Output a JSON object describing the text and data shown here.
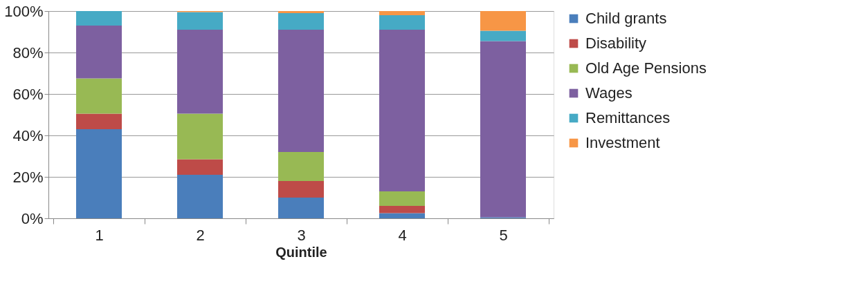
{
  "chart_data": {
    "type": "bar",
    "stacked": true,
    "xlabel": "Quintile",
    "categories": [
      "1",
      "2",
      "3",
      "4",
      "5"
    ],
    "series": [
      {
        "name": "Child grants",
        "color": "#4a7ebb",
        "values": [
          43,
          21,
          10,
          2.5,
          0.5
        ]
      },
      {
        "name": "Disability",
        "color": "#be4b48",
        "values": [
          7.5,
          7.5,
          8,
          3.5,
          0
        ]
      },
      {
        "name": "Old Age Pensions",
        "color": "#98b954",
        "values": [
          17,
          22,
          14,
          7,
          0
        ]
      },
      {
        "name": "Wages",
        "color": "#7d60a0",
        "values": [
          25.5,
          40.5,
          59,
          78,
          85
        ]
      },
      {
        "name": "Remittances",
        "color": "#46aac5",
        "values": [
          7,
          8.5,
          8,
          7,
          5
        ]
      },
      {
        "name": "Investment",
        "color": "#f79646",
        "values": [
          0,
          0.5,
          1,
          2,
          9.5
        ]
      }
    ],
    "ylim": [
      0,
      100
    ],
    "yticks": [
      {
        "value": 0,
        "label": "0%"
      },
      {
        "value": 20,
        "label": "20%"
      },
      {
        "value": 40,
        "label": "40%"
      },
      {
        "value": 60,
        "label": "60%"
      },
      {
        "value": 80,
        "label": "80%"
      },
      {
        "value": 100,
        "label": "100%"
      }
    ],
    "grid": "y",
    "legend": "right"
  }
}
